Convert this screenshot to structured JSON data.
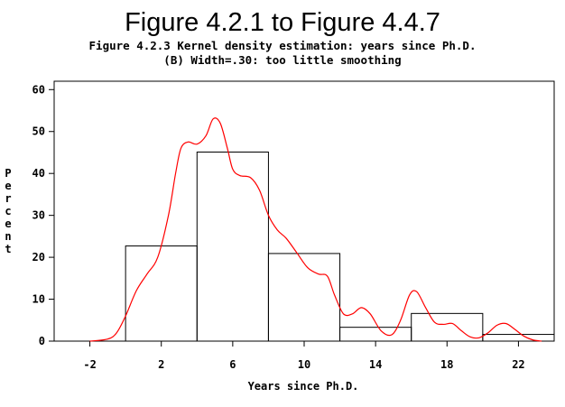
{
  "header": {
    "title": "Figure 4.2.1 to Figure 4.4.7",
    "subtitle_line1": "Figure 4.2.3 Kernel density estimation: years since Ph.D.",
    "subtitle_line2": "(B) Width=.30: too little smoothing"
  },
  "chart_data": {
    "type": "bar",
    "xlabel": "Years since Ph.D.",
    "ylabel": "Percent",
    "xlim": [
      -4,
      24
    ],
    "ylim": [
      0,
      62
    ],
    "xticks": [
      -2,
      2,
      6,
      10,
      14,
      18,
      22
    ],
    "yticks": [
      0,
      10,
      20,
      30,
      40,
      50,
      60
    ],
    "bins": [
      {
        "start": 0,
        "end": 4,
        "value": 22.7
      },
      {
        "start": 4,
        "end": 8,
        "value": 45.1
      },
      {
        "start": 8,
        "end": 12,
        "value": 20.9
      },
      {
        "start": 12,
        "end": 16,
        "value": 3.3
      },
      {
        "start": 16,
        "end": 20,
        "value": 6.6
      },
      {
        "start": 20,
        "end": 24,
        "value": 1.6
      }
    ],
    "density_curve": {
      "color": "#ff0000",
      "points": [
        [
          -2.0,
          0.0
        ],
        [
          -1.0,
          0.5
        ],
        [
          -0.5,
          2.0
        ],
        [
          0.0,
          6.0
        ],
        [
          0.6,
          12.0
        ],
        [
          1.2,
          16.0
        ],
        [
          1.8,
          20.0
        ],
        [
          2.4,
          30.0
        ],
        [
          2.8,
          40.0
        ],
        [
          3.1,
          46.0
        ],
        [
          3.5,
          47.5
        ],
        [
          4.0,
          47.0
        ],
        [
          4.5,
          49.0
        ],
        [
          4.9,
          53.0
        ],
        [
          5.3,
          52.0
        ],
        [
          5.7,
          46.0
        ],
        [
          6.0,
          41.0
        ],
        [
          6.4,
          39.5
        ],
        [
          7.0,
          39.0
        ],
        [
          7.5,
          36.0
        ],
        [
          8.0,
          30.0
        ],
        [
          8.5,
          26.5
        ],
        [
          9.0,
          24.5
        ],
        [
          9.6,
          21.0
        ],
        [
          10.2,
          17.5
        ],
        [
          10.8,
          16.0
        ],
        [
          11.3,
          15.5
        ],
        [
          11.7,
          11.0
        ],
        [
          12.2,
          6.5
        ],
        [
          12.7,
          6.5
        ],
        [
          13.2,
          8.0
        ],
        [
          13.7,
          6.5
        ],
        [
          14.3,
          2.5
        ],
        [
          14.9,
          1.5
        ],
        [
          15.4,
          5.0
        ],
        [
          15.9,
          11.0
        ],
        [
          16.3,
          11.8
        ],
        [
          16.8,
          8.0
        ],
        [
          17.3,
          4.5
        ],
        [
          17.8,
          4.0
        ],
        [
          18.3,
          4.2
        ],
        [
          18.8,
          2.5
        ],
        [
          19.3,
          1.0
        ],
        [
          19.8,
          0.8
        ],
        [
          20.3,
          2.0
        ],
        [
          20.8,
          3.8
        ],
        [
          21.3,
          4.2
        ],
        [
          21.8,
          2.8
        ],
        [
          22.3,
          1.2
        ],
        [
          22.8,
          0.3
        ],
        [
          23.3,
          0.0
        ]
      ]
    }
  }
}
